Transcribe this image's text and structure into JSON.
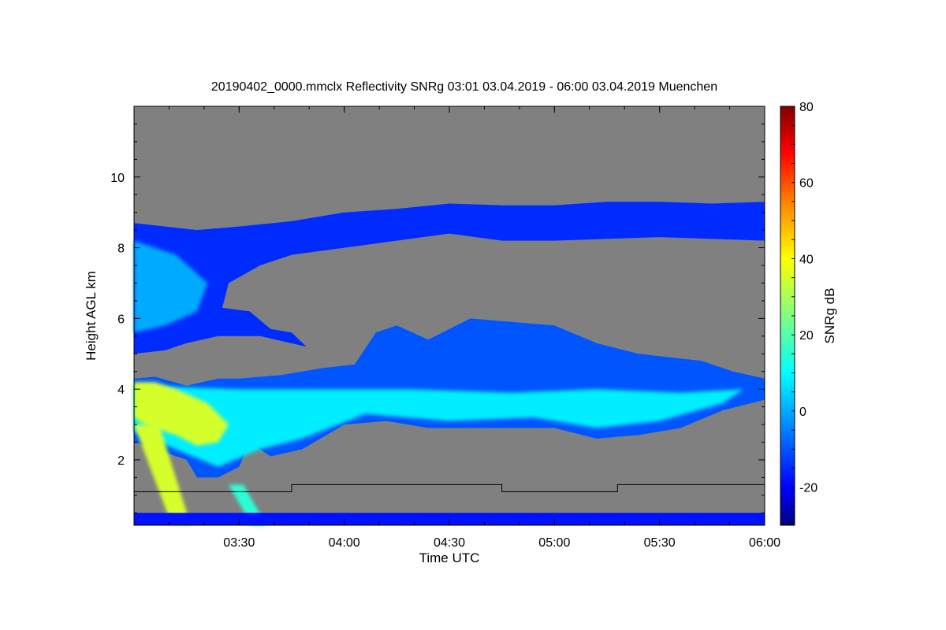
{
  "chart_data": {
    "type": "heatmap",
    "title": "20190402_0000.mmclx Reflectivity SNRg   03:01 03.04.2019 - 06:00 03.04.2019 Muenchen",
    "xlabel": "Time UTC",
    "ylabel": "Height AGL km",
    "xlim_hours": [
      3.0,
      6.0
    ],
    "ylim": [
      0.15,
      12.0
    ],
    "x_ticks": [
      {
        "v": 3.5,
        "label": "03:30"
      },
      {
        "v": 4.0,
        "label": "04:00"
      },
      {
        "v": 4.5,
        "label": "04:30"
      },
      {
        "v": 5.0,
        "label": "05:00"
      },
      {
        "v": 5.5,
        "label": "05:30"
      },
      {
        "v": 6.0,
        "label": "06:00"
      }
    ],
    "y_ticks": [
      {
        "v": 2,
        "label": "2"
      },
      {
        "v": 4,
        "label": "4"
      },
      {
        "v": 6,
        "label": "6"
      },
      {
        "v": 8,
        "label": "8"
      },
      {
        "v": 10,
        "label": "10"
      }
    ],
    "background_color": "#808080",
    "colorbar": {
      "label": "SNRg dB",
      "range": [
        -30,
        80
      ],
      "ticks": [
        {
          "v": -20,
          "label": "-20"
        },
        {
          "v": 0,
          "label": "0"
        },
        {
          "v": 20,
          "label": "20"
        },
        {
          "v": 40,
          "label": "40"
        },
        {
          "v": 60,
          "label": "60"
        },
        {
          "v": 80,
          "label": "80"
        }
      ],
      "stops": [
        {
          "v": -30,
          "color": "#00007f"
        },
        {
          "v": -20,
          "color": "#0000ff"
        },
        {
          "v": -5,
          "color": "#0080ff"
        },
        {
          "v": 10,
          "color": "#00ffff"
        },
        {
          "v": 25,
          "color": "#80ff80"
        },
        {
          "v": 40,
          "color": "#ffff00"
        },
        {
          "v": 55,
          "color": "#ff8000"
        },
        {
          "v": 68,
          "color": "#ff0000"
        },
        {
          "v": 80,
          "color": "#800000"
        }
      ]
    },
    "regions": [
      {
        "name": "upper-cirrus-layer",
        "snr": -15,
        "points": [
          [
            3.0,
            8.7
          ],
          [
            3.3,
            8.5
          ],
          [
            3.5,
            8.6
          ],
          [
            3.75,
            8.75
          ],
          [
            4.0,
            9.0
          ],
          [
            4.25,
            9.1
          ],
          [
            4.5,
            9.25
          ],
          [
            4.75,
            9.2
          ],
          [
            5.0,
            9.2
          ],
          [
            5.25,
            9.3
          ],
          [
            5.5,
            9.3
          ],
          [
            5.75,
            9.25
          ],
          [
            6.0,
            9.3
          ],
          [
            6.0,
            8.2
          ],
          [
            5.5,
            8.3
          ],
          [
            5.0,
            8.2
          ],
          [
            4.75,
            8.2
          ],
          [
            4.5,
            8.4
          ],
          [
            4.25,
            8.2
          ],
          [
            4.0,
            8.0
          ],
          [
            3.75,
            7.8
          ],
          [
            3.6,
            7.5
          ],
          [
            3.45,
            7.0
          ],
          [
            3.42,
            6.3
          ],
          [
            3.55,
            6.2
          ],
          [
            3.65,
            5.7
          ],
          [
            3.75,
            5.6
          ],
          [
            3.82,
            5.2
          ],
          [
            3.6,
            5.5
          ],
          [
            3.4,
            5.5
          ],
          [
            3.25,
            5.3
          ],
          [
            3.15,
            5.1
          ],
          [
            3.0,
            5.0
          ]
        ]
      },
      {
        "name": "upper-left-core",
        "snr": 0,
        "points": [
          [
            3.0,
            8.2
          ],
          [
            3.2,
            7.8
          ],
          [
            3.35,
            7.0
          ],
          [
            3.3,
            6.2
          ],
          [
            3.15,
            5.8
          ],
          [
            3.0,
            5.6
          ]
        ]
      },
      {
        "name": "mid-layer",
        "snr": -10,
        "points": [
          [
            3.0,
            4.3
          ],
          [
            3.1,
            4.35
          ],
          [
            3.25,
            4.1
          ],
          [
            3.4,
            4.3
          ],
          [
            3.5,
            4.3
          ],
          [
            3.7,
            4.4
          ],
          [
            3.9,
            4.6
          ],
          [
            4.05,
            4.7
          ],
          [
            4.15,
            5.6
          ],
          [
            4.25,
            5.8
          ],
          [
            4.4,
            5.4
          ],
          [
            4.5,
            5.7
          ],
          [
            4.6,
            6.0
          ],
          [
            4.8,
            5.9
          ],
          [
            5.0,
            5.8
          ],
          [
            5.2,
            5.3
          ],
          [
            5.4,
            5.0
          ],
          [
            5.7,
            4.8
          ],
          [
            5.85,
            4.5
          ],
          [
            6.0,
            4.3
          ],
          [
            6.0,
            3.7
          ],
          [
            5.8,
            3.4
          ],
          [
            5.6,
            2.9
          ],
          [
            5.4,
            2.7
          ],
          [
            5.2,
            2.6
          ],
          [
            5.0,
            2.9
          ],
          [
            4.6,
            2.9
          ],
          [
            4.4,
            2.9
          ],
          [
            4.2,
            3.1
          ],
          [
            4.0,
            3.0
          ],
          [
            3.8,
            2.3
          ],
          [
            3.65,
            2.1
          ],
          [
            3.55,
            2.5
          ],
          [
            3.5,
            1.8
          ],
          [
            3.4,
            1.5
          ],
          [
            3.3,
            1.5
          ],
          [
            3.25,
            2.0
          ],
          [
            3.1,
            2.3
          ],
          [
            3.0,
            2.5
          ]
        ]
      },
      {
        "name": "mid-layer-core",
        "snr": 8,
        "points": [
          [
            3.0,
            4.1
          ],
          [
            3.5,
            4.0
          ],
          [
            3.9,
            4.0
          ],
          [
            4.3,
            4.0
          ],
          [
            4.8,
            3.9
          ],
          [
            5.2,
            4.0
          ],
          [
            5.6,
            3.9
          ],
          [
            5.9,
            4.0
          ],
          [
            5.8,
            3.6
          ],
          [
            5.5,
            3.1
          ],
          [
            5.2,
            2.9
          ],
          [
            4.9,
            3.2
          ],
          [
            4.5,
            3.1
          ],
          [
            4.1,
            3.3
          ],
          [
            3.8,
            2.6
          ],
          [
            3.6,
            2.3
          ],
          [
            3.4,
            1.8
          ],
          [
            3.2,
            2.3
          ],
          [
            3.0,
            2.8
          ]
        ]
      },
      {
        "name": "yellow-core",
        "snr": 35,
        "points": [
          [
            3.0,
            4.2
          ],
          [
            3.1,
            4.2
          ],
          [
            3.2,
            4.0
          ],
          [
            3.35,
            3.6
          ],
          [
            3.45,
            3.0
          ],
          [
            3.4,
            2.5
          ],
          [
            3.3,
            2.4
          ],
          [
            3.2,
            2.7
          ],
          [
            3.05,
            3.0
          ],
          [
            3.0,
            3.2
          ]
        ]
      },
      {
        "name": "fall-streak-1",
        "snr": 35,
        "points": [
          [
            3.0,
            3.0
          ],
          [
            3.12,
            3.0
          ],
          [
            3.27,
            0.15
          ],
          [
            3.18,
            0.15
          ]
        ]
      },
      {
        "name": "fall-streak-2",
        "snr": 15,
        "points": [
          [
            3.45,
            1.3
          ],
          [
            3.52,
            1.3
          ],
          [
            3.63,
            0.15
          ],
          [
            3.56,
            0.15
          ]
        ]
      },
      {
        "name": "ground-clutter",
        "snr": -18,
        "points": [
          [
            3.0,
            0.15
          ],
          [
            6.0,
            0.15
          ],
          [
            6.0,
            0.5
          ],
          [
            3.0,
            0.5
          ]
        ]
      }
    ],
    "boundary_line": {
      "name": "cloud-base-line",
      "points": [
        [
          3.0,
          1.1
        ],
        [
          3.75,
          1.1
        ],
        [
          3.75,
          1.3
        ],
        [
          4.75,
          1.3
        ],
        [
          4.75,
          1.1
        ],
        [
          5.3,
          1.1
        ],
        [
          5.3,
          1.3
        ],
        [
          6.0,
          1.3
        ]
      ]
    }
  }
}
